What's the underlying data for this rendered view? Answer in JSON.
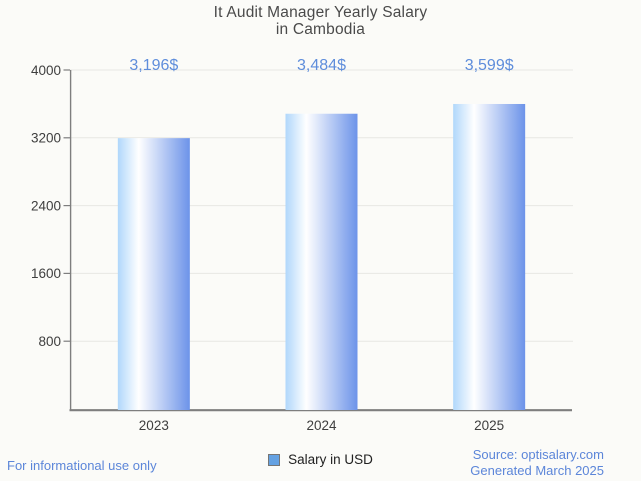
{
  "header": {
    "title_lines": [
      "It Audit Manager Yearly Salary",
      "in Cambodia"
    ]
  },
  "chart_data": {
    "type": "bar",
    "title": "It Audit Manager Yearly Salary in Cambodia",
    "categories": [
      "2023",
      "2024",
      "2025"
    ],
    "series": [
      {
        "name": "Salary in USD",
        "values": [
          3196,
          3484,
          3599
        ]
      }
    ],
    "value_labels": [
      "3,196$",
      "3,484$",
      "3,599$"
    ],
    "xlabel": "",
    "ylabel": "",
    "ylim": [
      0,
      4000
    ],
    "yticks": [
      800,
      1600,
      2400,
      3200,
      4000
    ],
    "grid": true,
    "legend_position": "bottom"
  },
  "legend": {
    "label": "Salary in USD"
  },
  "footer": {
    "note": "For informational use only",
    "source_line1": "Source: optisalary.com",
    "source_line2": "Generated March 2025"
  },
  "colors": {
    "background": "#FBFBF8",
    "title_text": "#4A4A4A",
    "axis_text": "#3E3E3E",
    "value_label_text": "#5E8DDB",
    "accent_text": "#5C86D9",
    "grid_line": "#E7E7E3",
    "axis_line": "#7E7E7E",
    "bar_gradient_left": "#B0D7FB",
    "bar_gradient_highlight": "#FFFFFF",
    "bar_gradient_right": "#6C93E9",
    "legend_swatch_fill": "#64A1E2",
    "legend_swatch_border": "#757575",
    "legend_text": "#212121"
  }
}
